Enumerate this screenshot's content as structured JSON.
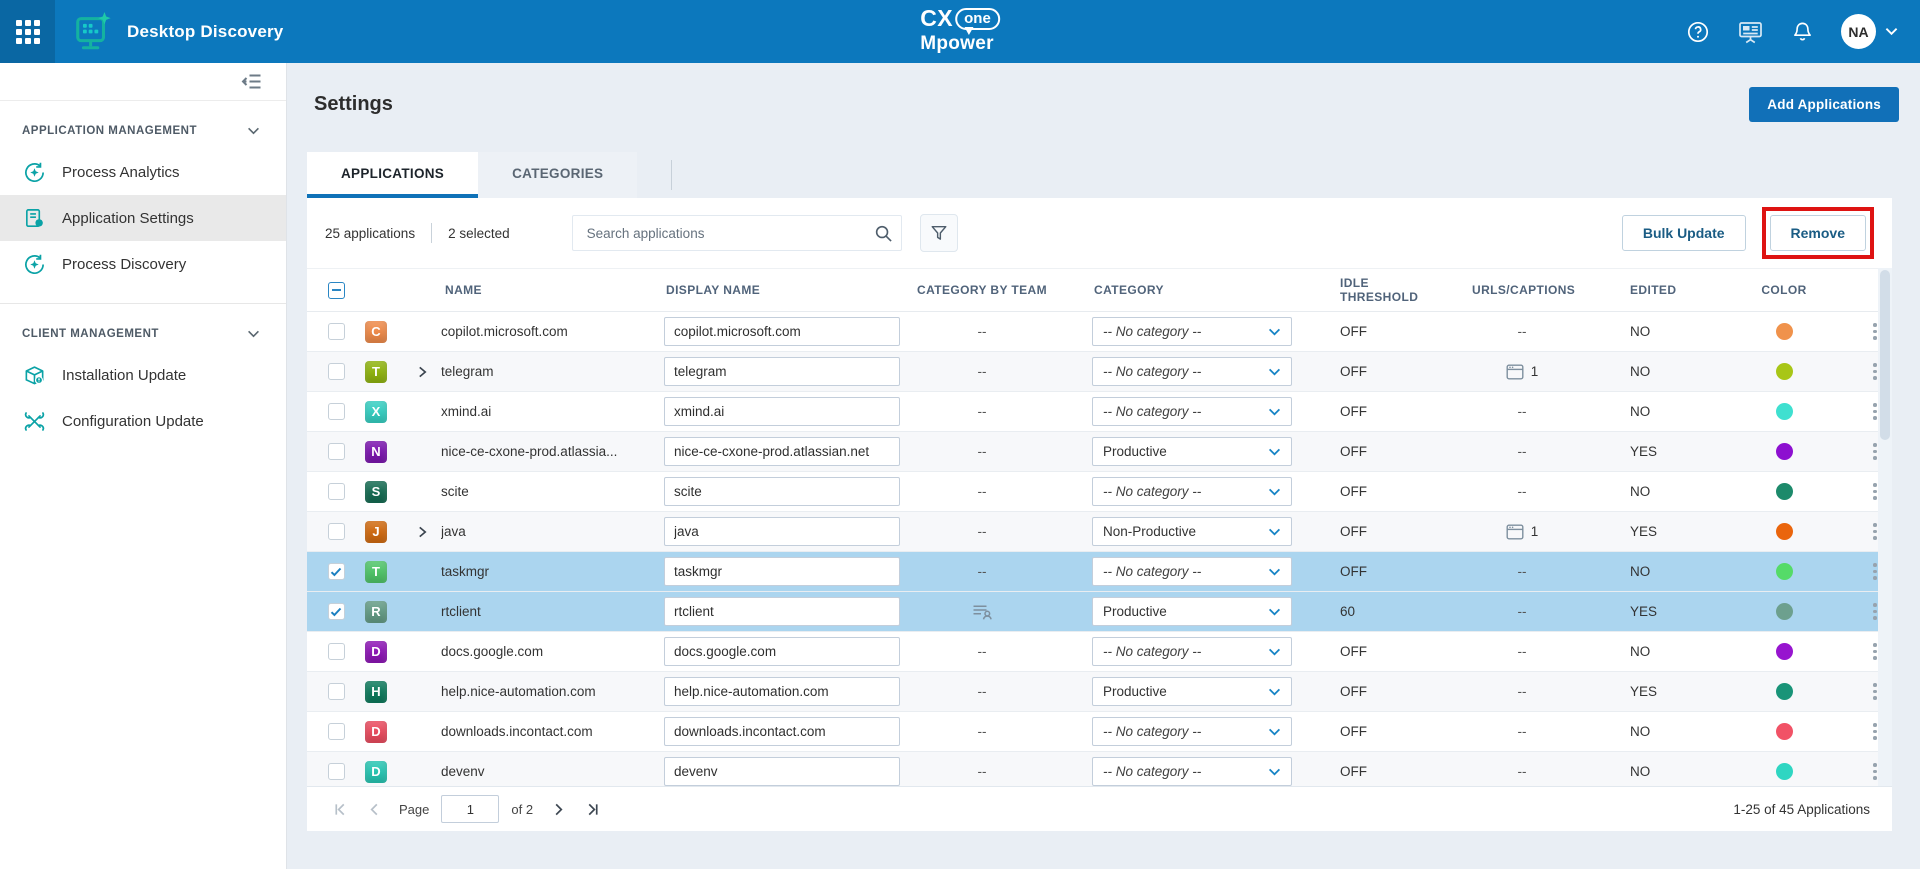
{
  "topbar": {
    "app_title": "Desktop Discovery",
    "brand": {
      "cx": "CX",
      "one": "one",
      "line2": "Mpower"
    },
    "avatar_initials": "NA"
  },
  "sidebar": {
    "sections": [
      {
        "label": "APPLICATION MANAGEMENT",
        "items": [
          {
            "label": "Process Analytics",
            "icon": "process-analytics",
            "selected": false
          },
          {
            "label": "Application Settings",
            "icon": "application-settings",
            "selected": true
          },
          {
            "label": "Process Discovery",
            "icon": "process-discovery",
            "selected": false
          }
        ]
      },
      {
        "label": "CLIENT MANAGEMENT",
        "items": [
          {
            "label": "Installation Update",
            "icon": "installation-update",
            "selected": false
          },
          {
            "label": "Configuration Update",
            "icon": "configuration-update",
            "selected": false
          }
        ]
      }
    ]
  },
  "page": {
    "title": "Settings",
    "add_button_label": "Add Applications",
    "tabs": [
      {
        "label": "APPLICATIONS",
        "active": true
      },
      {
        "label": "CATEGORIES",
        "active": false
      }
    ]
  },
  "toolbar": {
    "count_label": "25 applications",
    "selected_label": "2 selected",
    "search_placeholder": "Search applications",
    "bulk_update_label": "Bulk Update",
    "remove_label": "Remove"
  },
  "table": {
    "columns": [
      "NAME",
      "DISPLAY NAME",
      "CATEGORY BY TEAM",
      "CATEGORY",
      "IDLE THRESHOLD",
      "URLS/CAPTIONS",
      "EDITED",
      "COLOR"
    ],
    "rows": [
      {
        "name": "copilot.microsoft.com",
        "letter": "C",
        "icon_color": "#ee8a49",
        "expandable": false,
        "selected": false,
        "display_name": "copilot.microsoft.com",
        "category_by_team": "--",
        "team_icon": false,
        "category": "-- No category --",
        "category_none": true,
        "idle_threshold": "OFF",
        "urls_captions": "--",
        "urls_icon": false,
        "edited": "NO",
        "dot_color": "#f0924b"
      },
      {
        "name": "telegram",
        "letter": "T",
        "icon_color": "#8fb30f",
        "expandable": true,
        "selected": false,
        "display_name": "telegram",
        "category_by_team": "--",
        "team_icon": false,
        "category": "-- No category --",
        "category_none": true,
        "idle_threshold": "OFF",
        "urls_captions": "1",
        "urls_icon": true,
        "edited": "NO",
        "dot_color": "#a8c617"
      },
      {
        "name": "xmind.ai",
        "letter": "X",
        "icon_color": "#35cec1",
        "expandable": false,
        "selected": false,
        "display_name": "xmind.ai",
        "category_by_team": "--",
        "team_icon": false,
        "category": "-- No category --",
        "category_none": true,
        "idle_threshold": "OFF",
        "urls_captions": "--",
        "urls_icon": false,
        "edited": "NO",
        "dot_color": "#3fe0d0"
      },
      {
        "name": "nice-ce-cxone-prod.atlassia...",
        "letter": "N",
        "icon_color": "#7b16ae",
        "expandable": false,
        "selected": false,
        "display_name": "nice-ce-cxone-prod.atlassian.net",
        "category_by_team": "--",
        "team_icon": false,
        "category": "Productive",
        "category_none": false,
        "idle_threshold": "OFF",
        "urls_captions": "--",
        "urls_icon": false,
        "edited": "YES",
        "dot_color": "#8d10d0"
      },
      {
        "name": "scite",
        "letter": "S",
        "icon_color": "#156b52",
        "expandable": false,
        "selected": false,
        "display_name": "scite",
        "category_by_team": "--",
        "team_icon": false,
        "category": "-- No category --",
        "category_none": true,
        "idle_threshold": "OFF",
        "urls_captions": "--",
        "urls_icon": false,
        "edited": "NO",
        "dot_color": "#1d8a6b"
      },
      {
        "name": "java",
        "letter": "J",
        "icon_color": "#d06a10",
        "expandable": true,
        "selected": false,
        "display_name": "java",
        "category_by_team": "--",
        "team_icon": false,
        "category": "Non-Productive",
        "category_none": false,
        "idle_threshold": "OFF",
        "urls_captions": "1",
        "urls_icon": true,
        "edited": "YES",
        "dot_color": "#ea650c"
      },
      {
        "name": "taskmgr",
        "letter": "T",
        "icon_color": "#4fc468",
        "expandable": false,
        "selected": true,
        "display_name": "taskmgr",
        "category_by_team": "--",
        "team_icon": false,
        "category": "-- No category --",
        "category_none": true,
        "idle_threshold": "OFF",
        "urls_captions": "--",
        "urls_icon": false,
        "edited": "NO",
        "dot_color": "#55db68"
      },
      {
        "name": "rtclient",
        "letter": "R",
        "icon_color": "#639b85",
        "expandable": false,
        "selected": true,
        "display_name": "rtclient",
        "category_by_team": "",
        "team_icon": true,
        "category": "Productive",
        "category_none": false,
        "idle_threshold": "60",
        "urls_captions": "--",
        "urls_icon": false,
        "edited": "YES",
        "dot_color": "#6da08e"
      },
      {
        "name": "docs.google.com",
        "letter": "D",
        "icon_color": "#8d16b5",
        "expandable": false,
        "selected": false,
        "display_name": "docs.google.com",
        "category_by_team": "--",
        "team_icon": false,
        "category": "-- No category --",
        "category_none": true,
        "idle_threshold": "OFF",
        "urls_captions": "--",
        "urls_icon": false,
        "edited": "NO",
        "dot_color": "#9715cf"
      },
      {
        "name": "help.nice-automation.com",
        "letter": "H",
        "icon_color": "#0e7a5c",
        "expandable": false,
        "selected": false,
        "display_name": "help.nice-automation.com",
        "category_by_team": "--",
        "team_icon": false,
        "category": "Productive",
        "category_none": false,
        "idle_threshold": "OFF",
        "urls_captions": "--",
        "urls_icon": false,
        "edited": "YES",
        "dot_color": "#199478"
      },
      {
        "name": "downloads.incontact.com",
        "letter": "D",
        "icon_color": "#e94b5e",
        "expandable": false,
        "selected": false,
        "display_name": "downloads.incontact.com",
        "category_by_team": "--",
        "team_icon": false,
        "category": "-- No category --",
        "category_none": true,
        "idle_threshold": "OFF",
        "urls_captions": "--",
        "urls_icon": false,
        "edited": "NO",
        "dot_color": "#f15266"
      },
      {
        "name": "devenv",
        "letter": "D",
        "icon_color": "#27c5b2",
        "expandable": false,
        "selected": false,
        "display_name": "devenv",
        "category_by_team": "--",
        "team_icon": false,
        "category": "-- No category --",
        "category_none": true,
        "idle_threshold": "OFF",
        "urls_captions": "--",
        "urls_icon": false,
        "edited": "NO",
        "dot_color": "#2fd6c2"
      }
    ]
  },
  "pagination": {
    "page_label": "Page",
    "page_value": "1",
    "of_label": "of 2",
    "range_label": "1-25 of 45 Applications"
  },
  "colors": {
    "topbar": "#0c78bd",
    "accent_blue": "#0f72b8",
    "selected_row": "#abd5ef",
    "sidebar_icon_teal": "#0aa2a6",
    "highlight_red": "#de1312"
  }
}
